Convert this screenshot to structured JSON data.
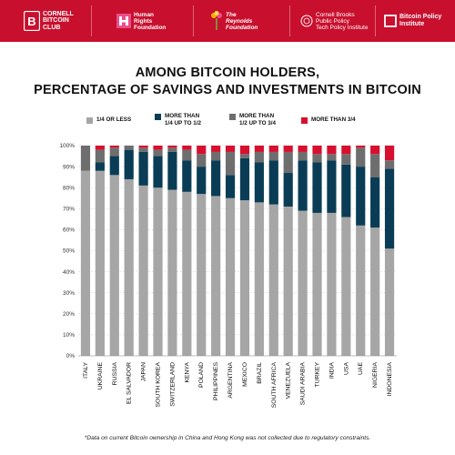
{
  "banner": {
    "logos": [
      {
        "icon": "bitcoin-b-icon",
        "text": "CORNELL\nBITCOIN\nCLUB"
      },
      {
        "icon": "hrf-logo-icon",
        "text": "Human\nRights\nFoundation"
      },
      {
        "icon": "reynolds-flower-icon",
        "text": "The\nReynolds\nFoundation"
      },
      {
        "icon": "cornell-seal-icon",
        "text": "Cornell Brooks\nPublic Policy\nTech Policy Institute"
      },
      {
        "icon": "square-outline-icon",
        "text": "Bitcoin Policy\nInstitute"
      }
    ]
  },
  "colors": {
    "banner": "#c8102e",
    "series": [
      "#a6a6a6",
      "#0a3d55",
      "#6e6e6e",
      "#d7102f"
    ]
  },
  "chart_data": {
    "type": "bar",
    "stacked": true,
    "title": "AMONG BITCOIN HOLDERS,\nPERCENTAGE OF SAVINGS AND INVESTMENTS IN BITCOIN",
    "categories": [
      "ITALY",
      "UKRAINE",
      "RUSSIA",
      "EL SALVADOR",
      "JAPAN",
      "SOUTH KOREA",
      "SWITZERLAND",
      "KENYA",
      "POLAND",
      "PHILIPPINES",
      "ARGENTINA",
      "MEXICO",
      "BRAZIL",
      "SOUTH AFRICA",
      "VENEZUELA",
      "SAUDI ARABIA",
      "TURKEY",
      "INDIA",
      "USA",
      "UAE",
      "NIGERIA",
      "INDONESIA"
    ],
    "series": [
      {
        "name": "1/4 OR LESS",
        "values": [
          88,
          88,
          86,
          84,
          81,
          80,
          79,
          78,
          77,
          76,
          75,
          74,
          73,
          72,
          71,
          69,
          68,
          68,
          66,
          62,
          61,
          51
        ]
      },
      {
        "name": "MORE THAN\n1/4 UP TO 1/2",
        "values": [
          0,
          4,
          9,
          14,
          16,
          15,
          18,
          15,
          13,
          17,
          11,
          20,
          19,
          21,
          16,
          24,
          24,
          25,
          25,
          28,
          24,
          38
        ]
      },
      {
        "name": "MORE THAN\n1/2 UP TO 3/4",
        "values": [
          12,
          6,
          4,
          2,
          2,
          3,
          2,
          5,
          6,
          4,
          11,
          2,
          5,
          4,
          10,
          4,
          4,
          3,
          5,
          9,
          11,
          4
        ]
      },
      {
        "name": "MORE THAN 3/4",
        "values": [
          0,
          2,
          1,
          0,
          1,
          2,
          1,
          2,
          4,
          3,
          3,
          4,
          3,
          3,
          3,
          3,
          4,
          4,
          4,
          1,
          4,
          7
        ]
      }
    ],
    "ylim": [
      0,
      100
    ],
    "yticks": [
      "0%",
      "10%",
      "20%",
      "30%",
      "40%",
      "50%",
      "60%",
      "70%",
      "80%",
      "90%",
      "100%"
    ],
    "legend_position": "top",
    "grid": true
  },
  "footnote": "*Data on current Bitcoin ownership in China and Hong Kong was not collected due to regulatory constraints."
}
